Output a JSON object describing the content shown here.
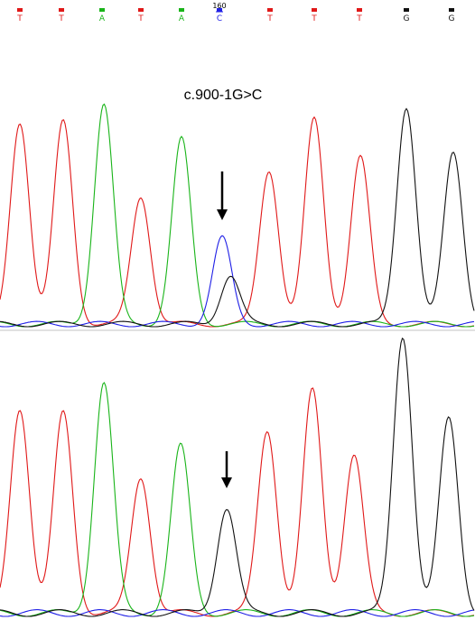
{
  "colors": {
    "A": "#19b419",
    "C": "#1f1fe6",
    "G": "#111111",
    "T": "#e01818",
    "arrow": "#000000"
  },
  "header": {
    "position_label": "160"
  },
  "mutation_label": "c.900-1G>C",
  "chart_data": {
    "type": "line",
    "title": "",
    "position_marker": {
      "label": "160",
      "base_index": 5
    },
    "base_calls": [
      "T",
      "T",
      "A",
      "T",
      "A",
      "C",
      "T",
      "T",
      "T",
      "G",
      "G"
    ],
    "annotation": {
      "text": "c.900-1G>C",
      "base_index": 5
    },
    "traces": [
      {
        "panel": "top",
        "peaks": [
          {
            "base": "T",
            "height": 0.92
          },
          {
            "base": "T",
            "height": 0.92
          },
          {
            "base": "A",
            "height": 1.0
          },
          {
            "base": "T",
            "height": 0.58
          },
          {
            "base": "A",
            "height": 0.84
          },
          {
            "base": "C",
            "height": 0.39
          },
          {
            "base": "G",
            "height": 0.22
          },
          {
            "base": "T",
            "height": 0.7
          },
          {
            "base": "T",
            "height": 0.93
          },
          {
            "base": "T",
            "height": 0.76
          },
          {
            "base": "G",
            "height": 0.99
          },
          {
            "base": "G",
            "height": 0.78
          }
        ],
        "arrow_base_index": 5
      },
      {
        "panel": "bottom",
        "peaks": [
          {
            "base": "T",
            "height": 0.74
          },
          {
            "base": "T",
            "height": 0.72
          },
          {
            "base": "A",
            "height": 0.83
          },
          {
            "base": "T",
            "height": 0.49
          },
          {
            "base": "A",
            "height": 0.6
          },
          {
            "base": "G",
            "height": 0.38
          },
          {
            "base": "T",
            "height": 0.66
          },
          {
            "base": "T",
            "height": 0.8
          },
          {
            "base": "T",
            "height": 0.57
          },
          {
            "base": "G",
            "height": 1.0
          },
          {
            "base": "G",
            "height": 0.7
          }
        ],
        "arrow_base_index": 5
      }
    ]
  }
}
